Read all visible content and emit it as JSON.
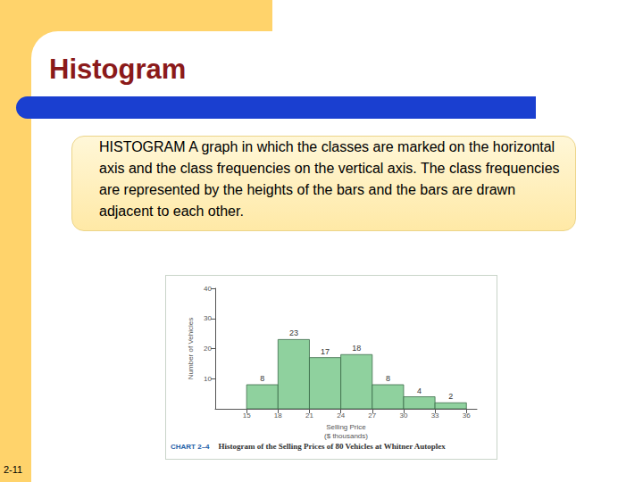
{
  "slide": {
    "heading": "Histogram",
    "definition": "HISTOGRAM  A graph in which the classes are marked on the horizontal axis and the class frequencies on the vertical axis. The class frequencies are represented by the heights of the bars and the bars are drawn adjacent to each other.",
    "page": "2-11"
  },
  "chart_data": {
    "type": "histogram",
    "chart_label": "CHART 2–4",
    "title": "Histogram of the Selling Prices of 80 Vehicles at Whitner Autoplex",
    "x_label": "Selling Price\n($ thousands)",
    "y_label": "Number of Vehicles",
    "bins": [
      15,
      18,
      21,
      24,
      27,
      30,
      33,
      36
    ],
    "values": [
      8,
      23,
      17,
      18,
      8,
      4,
      2
    ],
    "color": "#8fd19e",
    "xlim": [
      12,
      37
    ],
    "xticks": [
      15,
      18,
      21,
      24,
      27,
      30,
      33,
      36
    ],
    "ylim": [
      0,
      40
    ],
    "yticks": [
      10,
      20,
      30,
      40
    ],
    "grid": false,
    "data_labels": true
  }
}
